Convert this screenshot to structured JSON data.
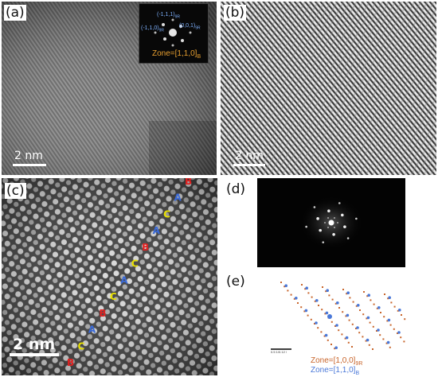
{
  "panels": {
    "a": {
      "label": "(a)",
      "scale_text": "2 nm",
      "inset": {
        "spots": [
          "(-1,1,1)",
          "(0,0,1)",
          "(-1,1,0)"
        ],
        "subscripts": [
          "9R",
          "9R",
          "9R"
        ],
        "zone": "Zone=[1,1,0]",
        "zone_sub": "B"
      }
    },
    "b": {
      "label": "(b)",
      "scale_text": "2 nm"
    },
    "c": {
      "label": "(c)",
      "scale_text": "2 nm",
      "stacking": [
        "B",
        "C",
        "A",
        "B",
        "C",
        "A",
        "C",
        "B",
        "A",
        "C",
        "A",
        "B"
      ],
      "stacking_colors": {
        "A": "#3a6ad8",
        "B": "#e02020",
        "C": "#e8e000"
      }
    },
    "d": {
      "label": "(d)"
    },
    "e": {
      "label": "(e)",
      "zone1": "Zone=[1,0,0]",
      "zone1_sub": "9R",
      "zone1_color": "#c8642a",
      "zone2": "Zone=[1,1,0]",
      "zone2_sub": "B",
      "zone2_color": "#4a78d8",
      "scalebar_text": "0.5 1/0.12 /"
    }
  }
}
